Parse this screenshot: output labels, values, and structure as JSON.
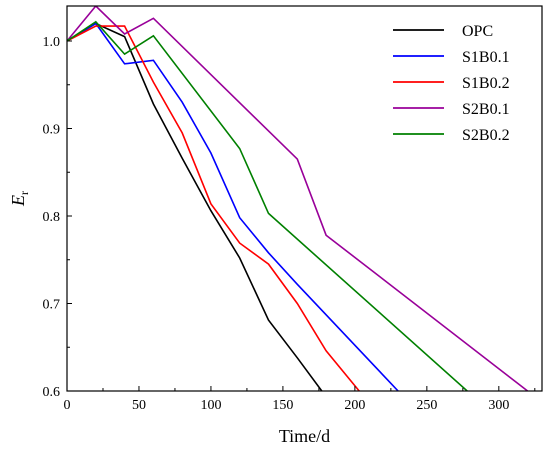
{
  "chart_data": {
    "type": "line",
    "xlabel": "Time/d",
    "ylabel_main": "E",
    "ylabel_sub": "r",
    "xlim": [
      0,
      330
    ],
    "ylim": [
      0.6,
      1.04
    ],
    "xticks": [
      0,
      50,
      100,
      150,
      200,
      250,
      300
    ],
    "yticks": [
      0.6,
      0.7,
      0.8,
      0.9,
      1.0
    ],
    "xtick_labels": [
      "0",
      "50",
      "100",
      "150",
      "200",
      "250",
      "300"
    ],
    "ytick_labels": [
      "0.6",
      "0.7",
      "0.8",
      "0.9",
      "1.0"
    ],
    "grid": false,
    "legend_position": "top-right",
    "series": [
      {
        "name": "OPC",
        "color": "#000000",
        "points": [
          [
            0,
            1.0
          ],
          [
            20,
            1.02
          ],
          [
            40,
            1.005
          ],
          [
            60,
            0.928
          ],
          [
            80,
            0.866
          ],
          [
            100,
            0.806
          ],
          [
            120,
            0.752
          ],
          [
            140,
            0.681
          ],
          [
            160,
            0.638
          ],
          [
            177,
            0.6
          ]
        ]
      },
      {
        "name": "S1B0.1",
        "color": "#0000ff",
        "points": [
          [
            0,
            1.0
          ],
          [
            20,
            1.02
          ],
          [
            40,
            0.974
          ],
          [
            60,
            0.978
          ],
          [
            80,
            0.93
          ],
          [
            100,
            0.872
          ],
          [
            120,
            0.798
          ],
          [
            140,
            0.758
          ],
          [
            160,
            0.722
          ],
          [
            230,
            0.6
          ]
        ]
      },
      {
        "name": "S1B0.2",
        "color": "#ff0000",
        "points": [
          [
            0,
            1.0
          ],
          [
            20,
            1.017
          ],
          [
            40,
            1.017
          ],
          [
            60,
            0.953
          ],
          [
            80,
            0.895
          ],
          [
            100,
            0.814
          ],
          [
            120,
            0.769
          ],
          [
            140,
            0.745
          ],
          [
            160,
            0.7
          ],
          [
            180,
            0.646
          ],
          [
            203,
            0.6
          ]
        ]
      },
      {
        "name": "S2B0.1",
        "color": "#990099",
        "points": [
          [
            0,
            1.0
          ],
          [
            20,
            1.04
          ],
          [
            40,
            1.008
          ],
          [
            60,
            1.026
          ],
          [
            160,
            0.865
          ],
          [
            180,
            0.778
          ],
          [
            320,
            0.6
          ]
        ]
      },
      {
        "name": "S2B0.2",
        "color": "#008000",
        "points": [
          [
            0,
            1.0
          ],
          [
            20,
            1.022
          ],
          [
            40,
            0.985
          ],
          [
            60,
            1.006
          ],
          [
            120,
            0.877
          ],
          [
            140,
            0.803
          ],
          [
            278,
            0.6
          ]
        ]
      }
    ]
  }
}
